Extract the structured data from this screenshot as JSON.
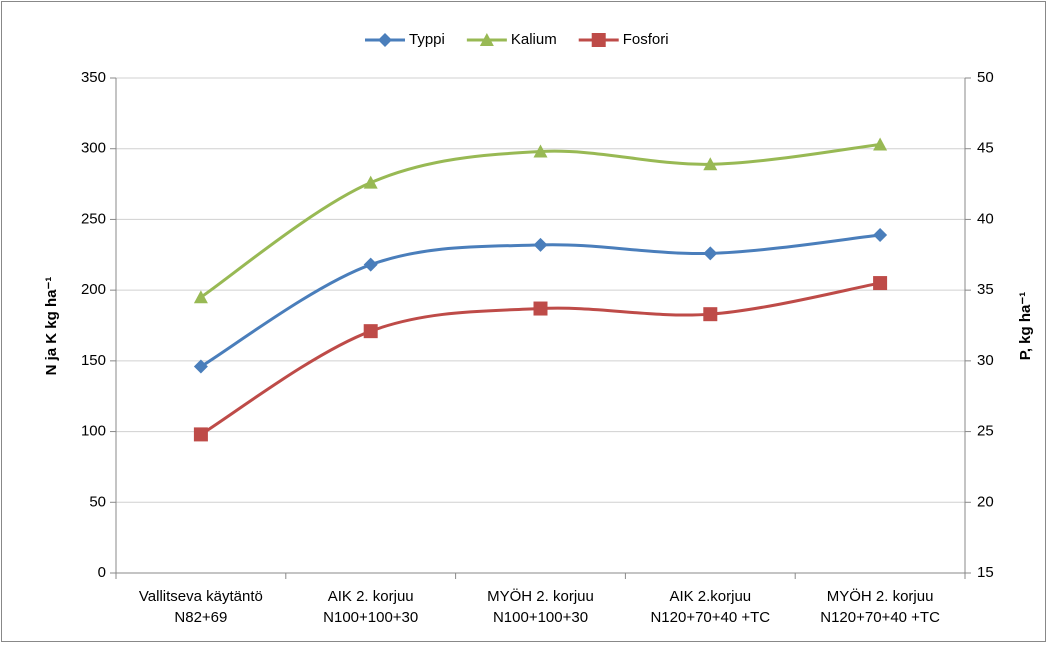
{
  "chart_data": {
    "type": "line",
    "categories": [
      [
        "Vallitseva käytäntö",
        "N82+69"
      ],
      [
        "AIK 2. korjuu",
        "N100+100+30"
      ],
      [
        "MYÖH 2. korjuu",
        "N100+100+30"
      ],
      [
        "AIK 2.korjuu",
        "N120+70+40 +TC"
      ],
      [
        "MYÖH 2. korjuu",
        "N120+70+40 +TC"
      ]
    ],
    "y_label": "N ja K kg ha⁻¹",
    "y2_label": "P, kg ha⁻¹",
    "series": [
      {
        "name": "Typpi",
        "color": "#4a7ebb",
        "marker": "diamond",
        "values": [
          146,
          218,
          232,
          226,
          239
        ]
      },
      {
        "name": "Kalium",
        "color": "#98b954",
        "marker": "triangle",
        "values": [
          195,
          276,
          298,
          289,
          303
        ]
      },
      {
        "name": "Fosfori",
        "color": "#be4b48",
        "marker": "square",
        "axis": "y2",
        "values": [
          24.8,
          32.1,
          33.7,
          33.3,
          35.5
        ]
      }
    ],
    "ylim": [
      0,
      350
    ],
    "yticks": [
      0,
      50,
      100,
      150,
      200,
      250,
      300,
      350
    ],
    "y2lim": [
      15,
      50
    ],
    "y2ticks": [
      15,
      20,
      25,
      30,
      35,
      40,
      45,
      50
    ],
    "grid": true,
    "legend": "top",
    "smooth": true
  }
}
